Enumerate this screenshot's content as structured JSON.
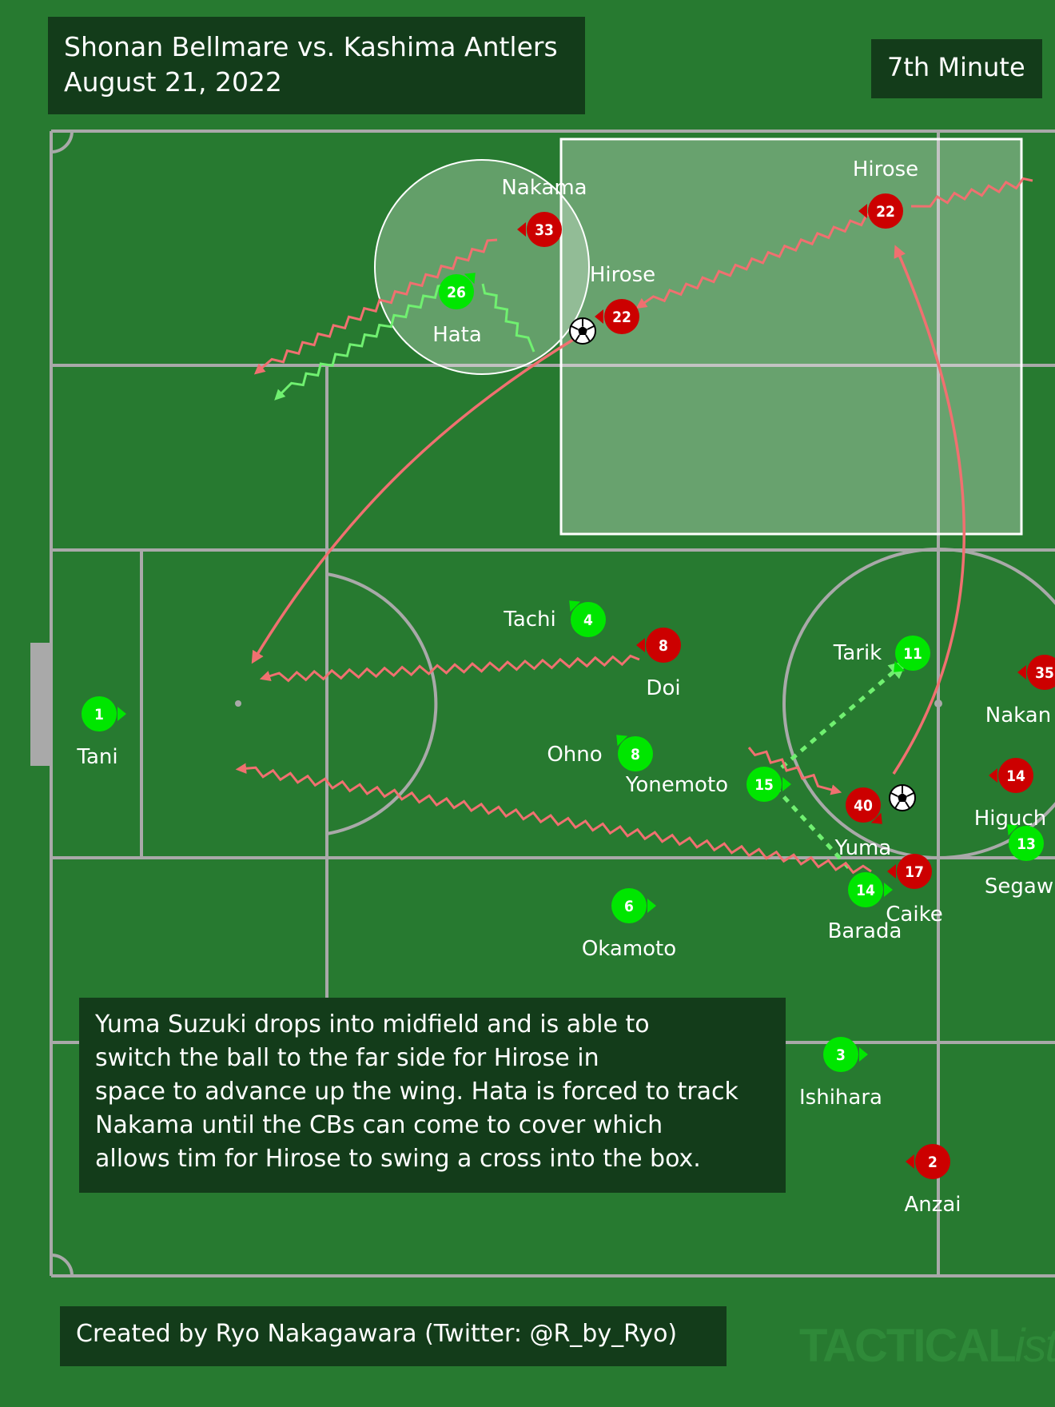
{
  "header": {
    "title_line1": "Shonan Bellmare vs. Kashima Antlers",
    "title_line2": "August 21, 2022",
    "minute": "7th Minute"
  },
  "caption": {
    "lines": [
      "Yuma Suzuki drops into midfield and is able to",
      "switch the ball to the far side for Hirose in",
      "space to advance up the wing. Hata is forced to track",
      "Nakama until the CBs can come to cover which",
      "allows tim for Hirose to swing a cross into the box."
    ]
  },
  "footer": {
    "credit": "Created by Ryo Nakagawara (Twitter: @R_by_Ryo)",
    "watermark_main": "TACTICAL",
    "watermark_italic": "ista"
  },
  "colors": {
    "pitch": "#277a30",
    "lines": "#a9a9a9",
    "home": "#00e600",
    "away": "#cc0000",
    "away_arrow": "#f07070",
    "home_arrow": "#70f070",
    "panel": "#133c1a"
  },
  "players": [
    {
      "id": "tani",
      "team": "home",
      "number": "1",
      "name": "Tani"
    },
    {
      "id": "hata",
      "team": "home",
      "number": "26",
      "name": "Hata"
    },
    {
      "id": "tachi",
      "team": "home",
      "number": "4",
      "name": "Tachi"
    },
    {
      "id": "ohno",
      "team": "home",
      "number": "8",
      "name": "Ohno"
    },
    {
      "id": "yonemoto",
      "team": "home",
      "number": "15",
      "name": "Yonemoto"
    },
    {
      "id": "tarik",
      "team": "home",
      "number": "11",
      "name": "Tarik"
    },
    {
      "id": "barada",
      "team": "home",
      "number": "14",
      "name": "Barada"
    },
    {
      "id": "okamoto",
      "team": "home",
      "number": "6",
      "name": "Okamoto"
    },
    {
      "id": "ishihara",
      "team": "home",
      "number": "3",
      "name": "Ishihara"
    },
    {
      "id": "segawa",
      "team": "home",
      "number": "13",
      "name": "Segaw"
    },
    {
      "id": "nakama",
      "team": "away",
      "number": "33",
      "name": "Nakama"
    },
    {
      "id": "hirose_b",
      "team": "away",
      "number": "22",
      "name": "Hirose"
    },
    {
      "id": "hirose_a",
      "team": "away",
      "number": "22",
      "name": "Hirose"
    },
    {
      "id": "doi",
      "team": "away",
      "number": "8",
      "name": "Doi"
    },
    {
      "id": "yuma",
      "team": "away",
      "number": "40",
      "name": "Yuma"
    },
    {
      "id": "caike",
      "team": "away",
      "number": "17",
      "name": "Caike"
    },
    {
      "id": "anzai",
      "team": "away",
      "number": "2",
      "name": "Anzai"
    },
    {
      "id": "nakam2",
      "team": "away",
      "number": "35",
      "name": "Nakan"
    },
    {
      "id": "higuchi",
      "team": "away",
      "number": "14",
      "name": "Higuch"
    }
  ]
}
